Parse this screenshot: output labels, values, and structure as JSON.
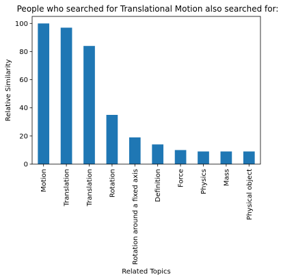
{
  "chart_data": {
    "type": "bar",
    "title": "People who searched for Translational Motion also searched for:",
    "xlabel": "Related Topics",
    "ylabel": "Relative Similarity",
    "categories": [
      "Motion",
      "Translation",
      "Translation",
      "Rotation",
      "Rotation around a fixed axis",
      "Definition",
      "Force",
      "Physics",
      "Mass",
      "Physical object"
    ],
    "values": [
      100,
      97,
      84,
      35,
      19,
      14,
      10,
      9,
      9,
      9
    ],
    "ylim": [
      0,
      105
    ],
    "yticks": [
      0,
      20,
      40,
      60,
      80,
      100
    ],
    "grid": false,
    "legend": "none",
    "bar_color": "#1f77b4"
  }
}
